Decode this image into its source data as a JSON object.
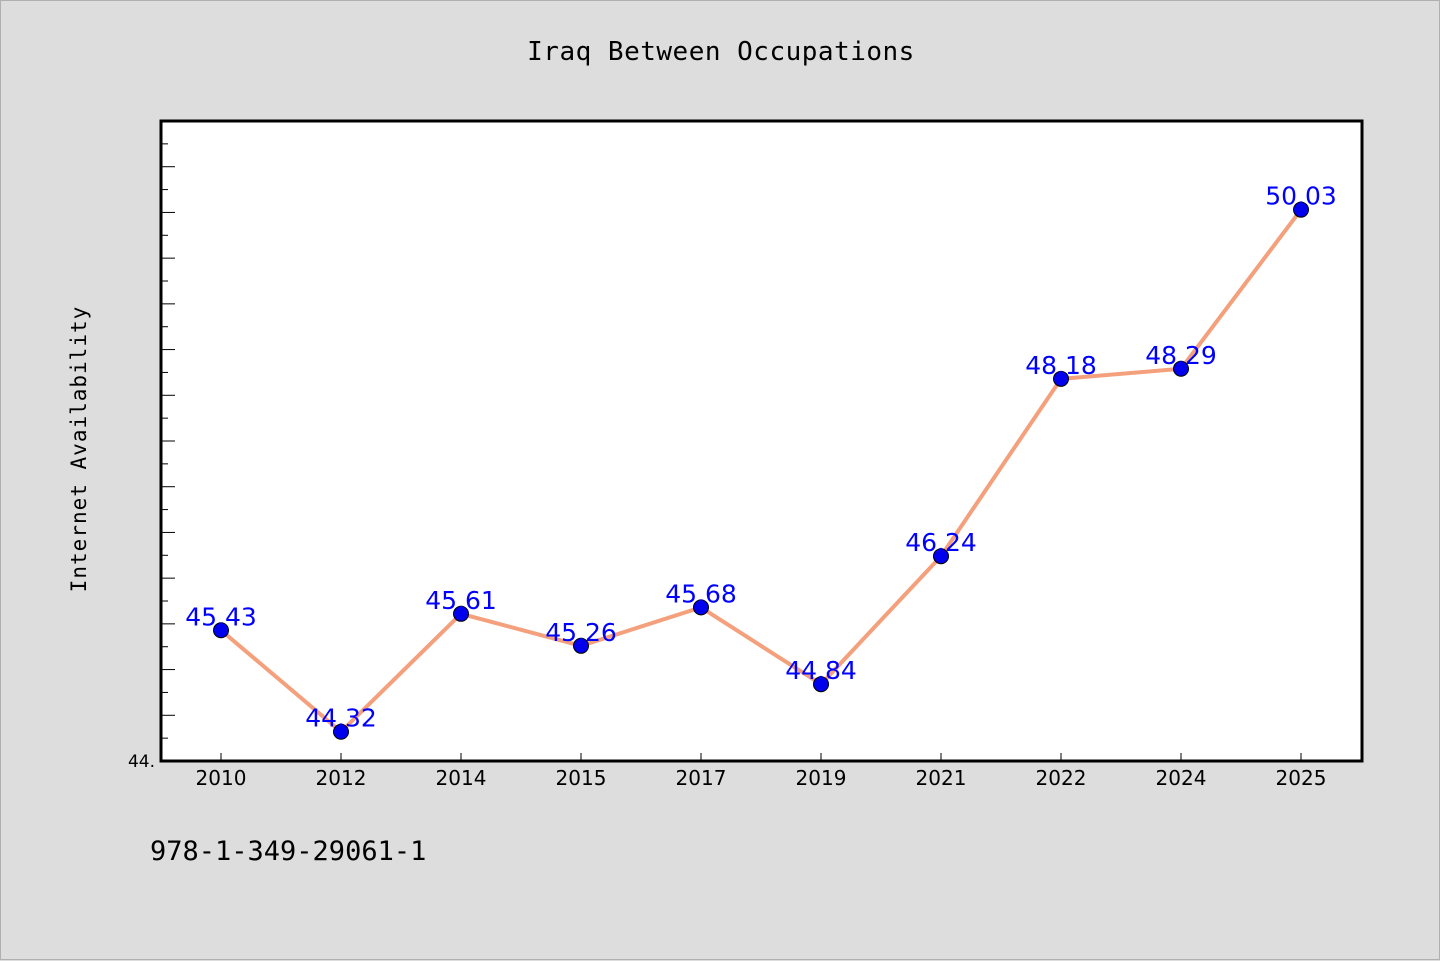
{
  "chart_data": {
    "type": "line",
    "title": "Iraq Between Occupations",
    "xlabel": "",
    "ylabel": "Internet Availability",
    "categories": [
      "2010",
      "2012",
      "2014",
      "2015",
      "2017",
      "2019",
      "2021",
      "2022",
      "2024",
      "2025"
    ],
    "series": [
      {
        "values": [
          45.43,
          44.32,
          45.61,
          45.26,
          45.68,
          44.84,
          46.24,
          48.18,
          48.29,
          50.03
        ]
      }
    ],
    "data_labels": [
      "45.43",
      "44.32",
      "45.61",
      "45.26",
      "45.68",
      "44.84",
      "46.24",
      "48.18",
      "48.29",
      "50.03"
    ],
    "y_tick_label": "44.",
    "ylim": [
      44.0,
      51.0
    ],
    "grid": false,
    "legend": "none",
    "colors": {
      "line": "#f4a07c",
      "marker": "#0000ee",
      "data_label": "#0000ff",
      "background": "#dddddd",
      "plot_background": "#ffffff"
    }
  },
  "footer": {
    "code": "978-1-349-29061-1"
  }
}
